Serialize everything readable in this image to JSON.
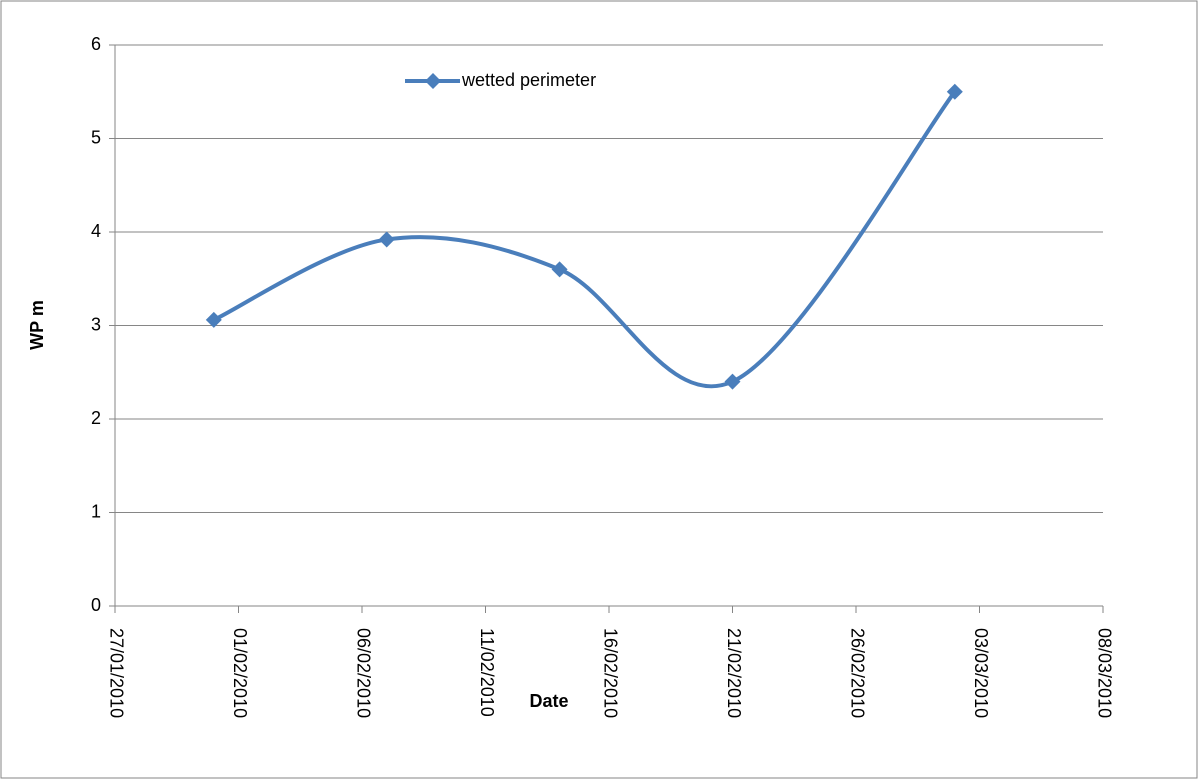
{
  "chart_data": {
    "type": "line",
    "x_label": "Date",
    "y_label": "WP m",
    "x": [
      "31/01/2010",
      "07/02/2010",
      "14/02/2010",
      "21/02/2010",
      "02/03/2010"
    ],
    "series": [
      {
        "name": "wetted perimeter",
        "color": "#4a7ebb",
        "values": [
          3.06,
          3.92,
          3.6,
          2.4,
          5.5
        ]
      }
    ],
    "xlim": [
      "27/01/2010",
      "08/03/2010"
    ],
    "xticks": [
      "27/01/2010",
      "01/02/2010",
      "06/02/2010",
      "11/02/2010",
      "16/02/2010",
      "21/02/2010",
      "26/02/2010",
      "03/03/2010",
      "08/03/2010"
    ],
    "ylim": [
      0,
      6
    ],
    "yticks": [
      0,
      1,
      2,
      3,
      4,
      5,
      6
    ],
    "grid": true,
    "smooth": true,
    "legend": "top"
  }
}
